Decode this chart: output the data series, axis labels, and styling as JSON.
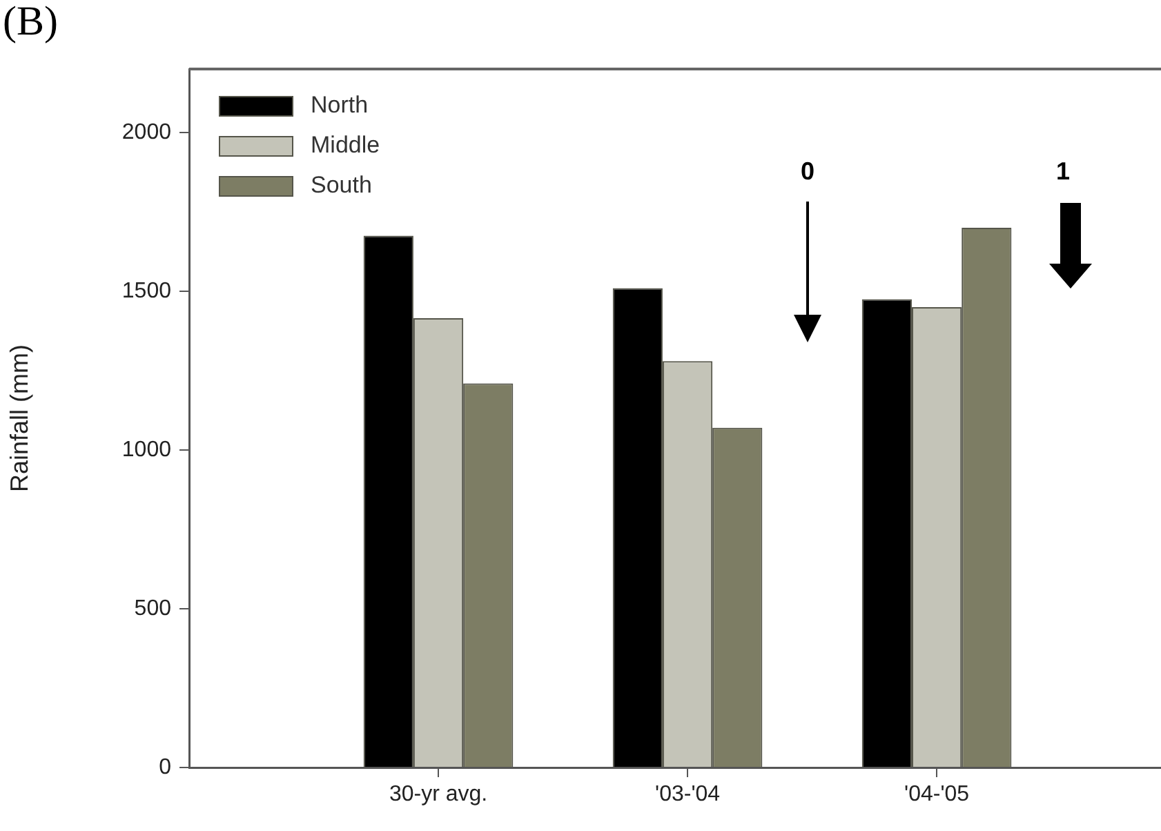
{
  "chart_data": {
    "type": "bar",
    "title": "(B)",
    "ylabel": "Rainfall (mm)",
    "categories": [
      "30-yr avg.",
      "'03-'04",
      "'04-'05"
    ],
    "series": [
      {
        "name": "North",
        "color": "#000000",
        "values": [
          1675,
          1510,
          1475
        ]
      },
      {
        "name": "Middle",
        "color": "#c4c4b8",
        "values": [
          1415,
          1280,
          1450
        ]
      },
      {
        "name": "South",
        "color": "#7d7d64",
        "values": [
          1210,
          1070,
          1700
        ]
      }
    ],
    "ylim": [
      0,
      2200
    ],
    "yticks": [
      0,
      500,
      1000,
      1500,
      2000
    ],
    "grid": false,
    "legend": "top left",
    "annotations": [
      "0",
      "1"
    ]
  }
}
